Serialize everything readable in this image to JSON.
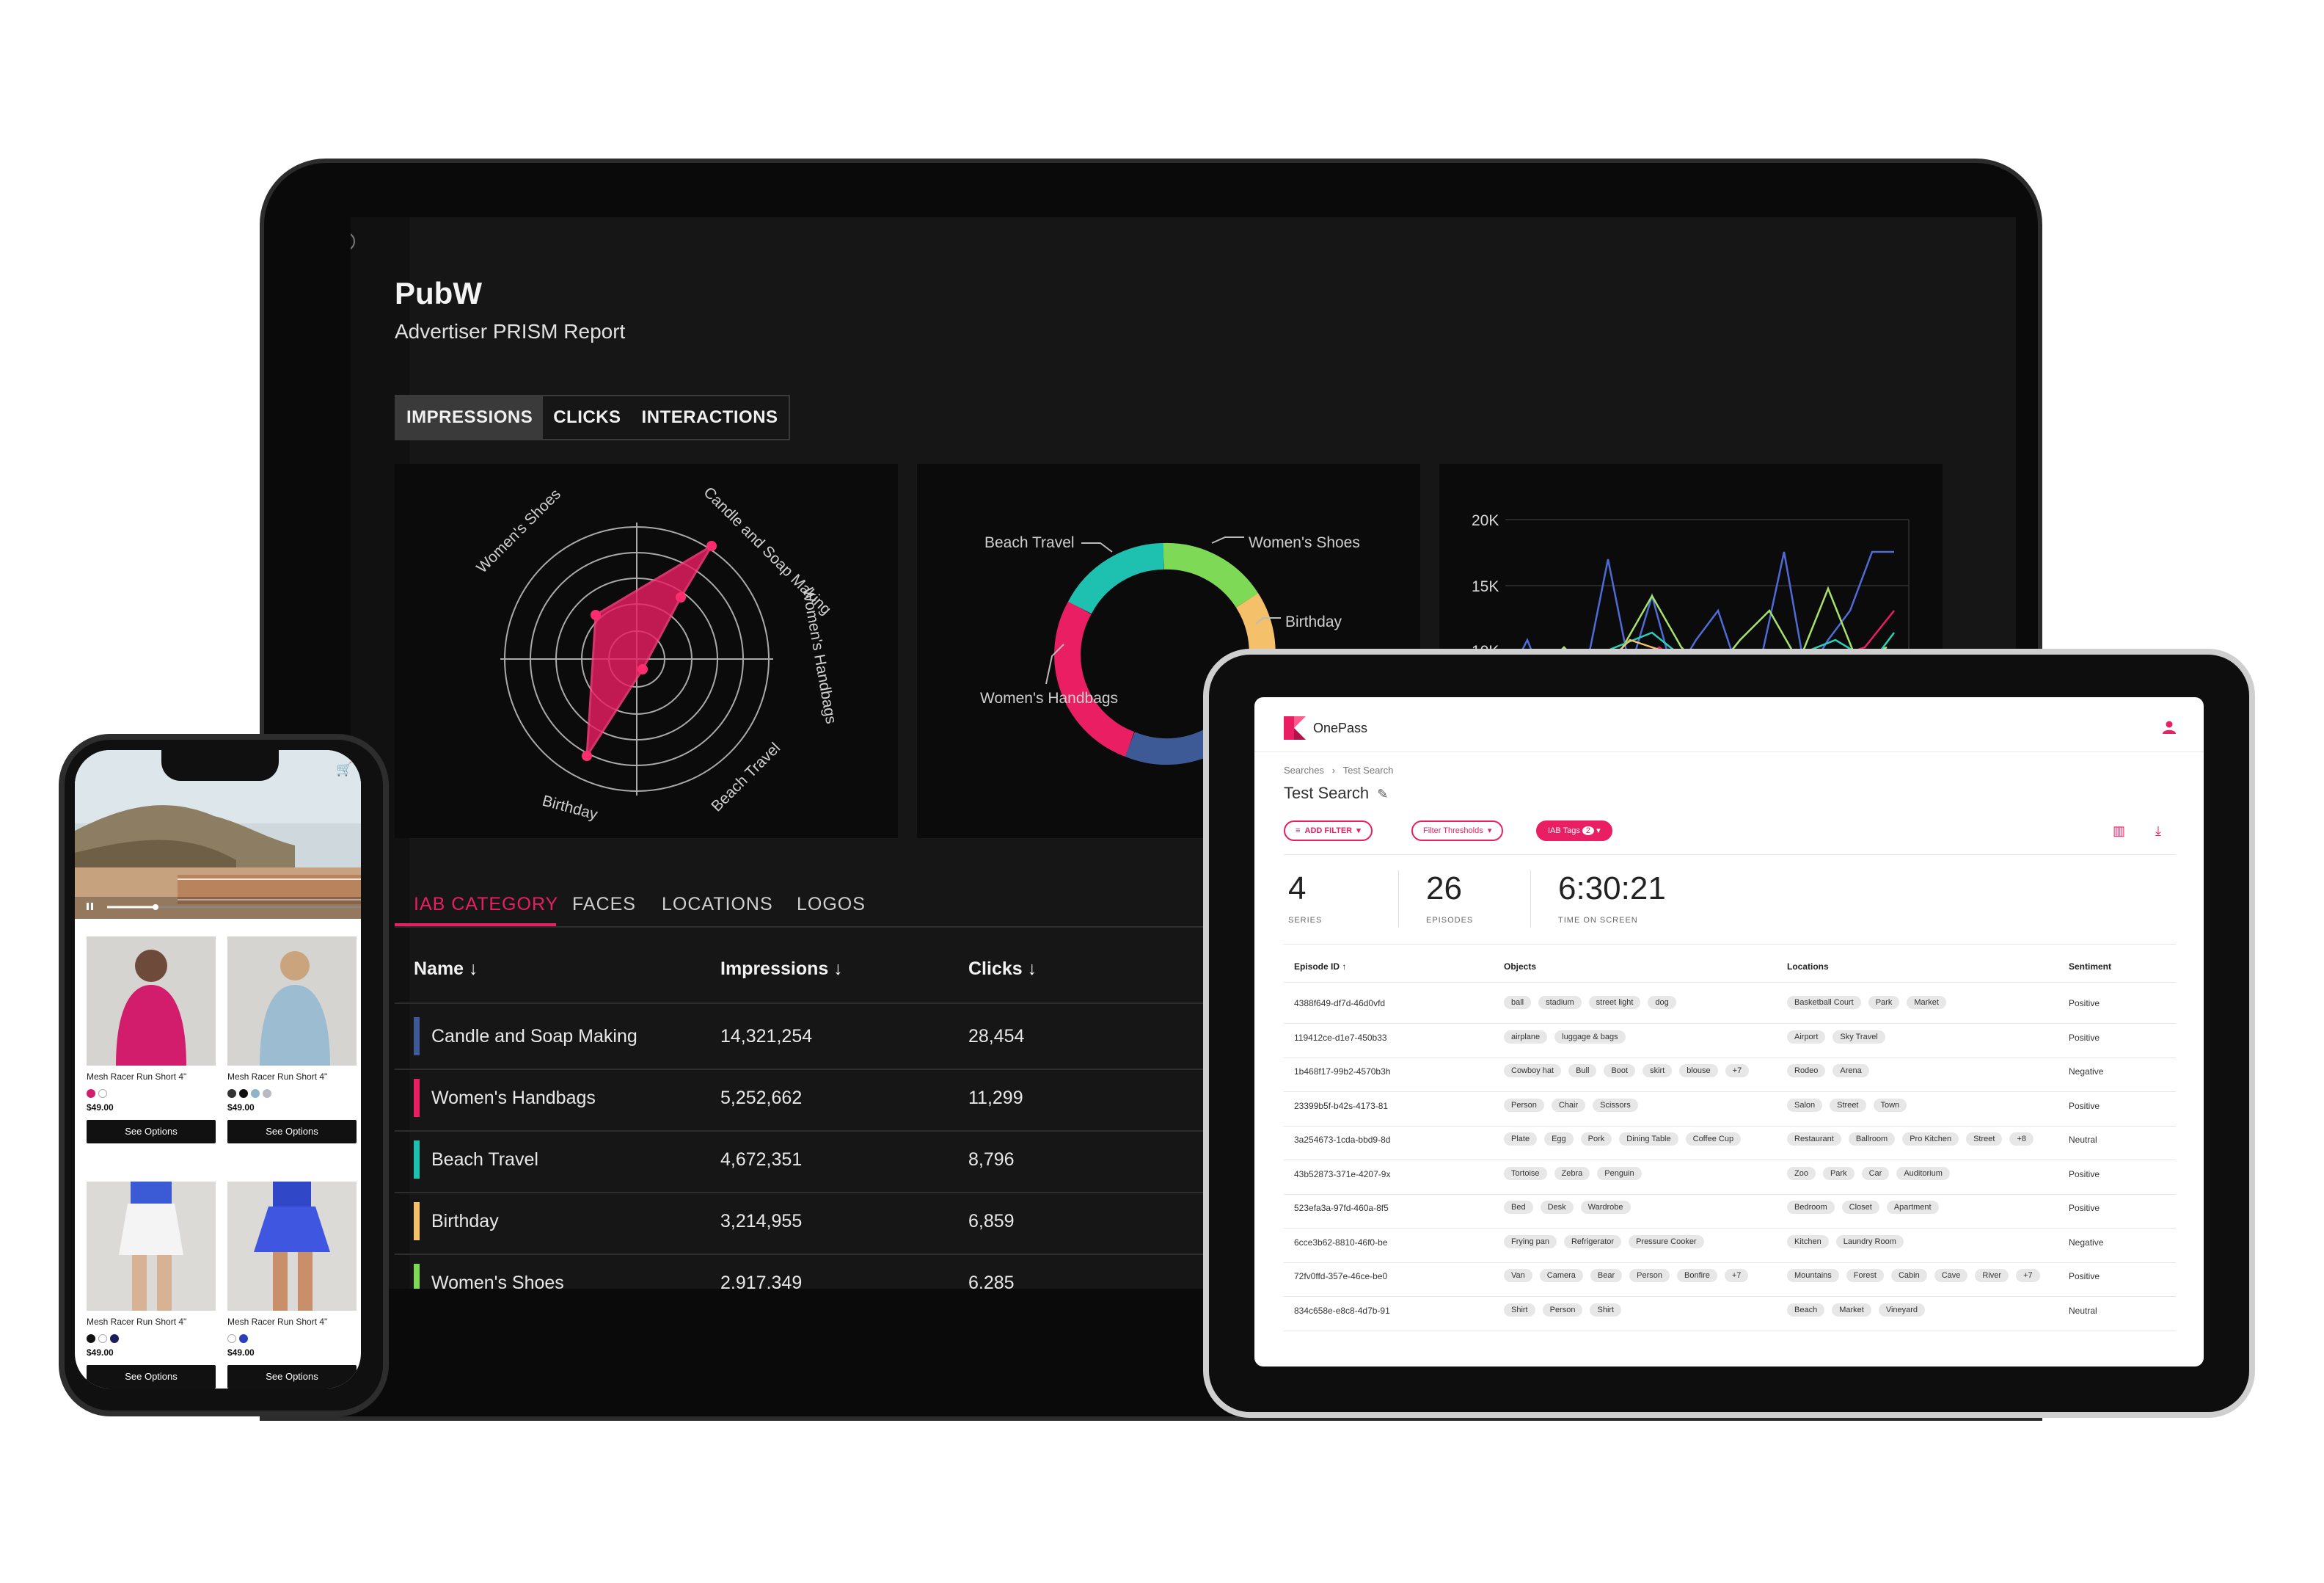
{
  "laptop": {
    "app_title": "PubW",
    "subtitle": "Advertiser PRISM Report",
    "tabs": [
      "IMPRESSIONS",
      "CLICKS",
      "INTERACTIONS"
    ],
    "radar_labels": [
      "Women's Shoes",
      "Candle and Soap Making",
      "Women's Handbags",
      "Beach Travel",
      "Birthday"
    ],
    "donut_labels": [
      "Beach Travel",
      "Women's Shoes",
      "Birthday",
      "Women's Handbags"
    ],
    "line_axis": [
      "20K",
      "15K",
      "10K"
    ],
    "sub_tabs": [
      "IAB CATEGORY",
      "FACES",
      "LOCATIONS",
      "LOGOS"
    ],
    "columns": [
      "Name",
      "Impressions",
      "Clicks"
    ],
    "rows": [
      {
        "name": "Candle and Soap Making",
        "impressions": "14,321,254",
        "clicks": "28,454",
        "color": "#3d5a96"
      },
      {
        "name": "Women's Handbags",
        "impressions": "5,252,662",
        "clicks": "11,299",
        "color": "#e91e63"
      },
      {
        "name": "Beach Travel",
        "impressions": "4,672,351",
        "clicks": "8,796",
        "color": "#1ec1b0"
      },
      {
        "name": "Birthday",
        "impressions": "3,214,955",
        "clicks": "6,859",
        "color": "#f5c06a"
      },
      {
        "name": "Women's Shoes",
        "impressions": "2,917,349",
        "clicks": "6,285",
        "color": "#7ed957"
      }
    ],
    "icons": [
      "logo-k-icon",
      "collapse-chevron-icon",
      "megaphone-icon",
      "video-icon",
      "grid-icon",
      "bar-chart-icon",
      "cast-icon",
      "face-scan-icon"
    ]
  },
  "phone": {
    "products": [
      {
        "name": "Mesh Racer Run Short 4\"",
        "price": "$49.00",
        "button": "See Options"
      },
      {
        "name": "Mesh Racer Run Short 4\"",
        "price": "$49.00",
        "button": "See Options"
      },
      {
        "name": "Mesh Racer Run Short 4\"",
        "price": "$49.00",
        "button": "See Options"
      },
      {
        "name": "Mesh Racer Run Short 4\"",
        "price": "$49.00",
        "button": "See Options"
      }
    ]
  },
  "tablet": {
    "app_name": "OnePass",
    "breadcrumb": [
      "Searches",
      "Test Search"
    ],
    "title": "Test Search",
    "filters": [
      "ADD FILTER",
      "Filter Thresholds",
      "IAB Tags"
    ],
    "iab_count": "2",
    "stats": [
      {
        "value": "4",
        "label": "SERIES"
      },
      {
        "value": "26",
        "label": "EPISODES"
      },
      {
        "value": "6:30:21",
        "label": "TIME ON SCREEN"
      }
    ],
    "columns": [
      "Episode ID",
      "Objects",
      "Locations",
      "Sentiment"
    ],
    "rows": [
      {
        "id": "4388f649-df7d-46d0vfd",
        "objects": [
          "ball",
          "stadium",
          "street light",
          "dog"
        ],
        "locations": [
          "Basketball Court",
          "Park",
          "Market"
        ],
        "sentiment": "Positive"
      },
      {
        "id": "119412ce-d1e7-450b33",
        "objects": [
          "airplane",
          "luggage & bags"
        ],
        "locations": [
          "Airport",
          "Sky Travel"
        ],
        "sentiment": "Positive"
      },
      {
        "id": "1b468f17-99b2-4570b3h",
        "objects": [
          "Cowboy hat",
          "Bull",
          "Boot",
          "skirt",
          "blouse",
          "+7"
        ],
        "locations": [
          "Rodeo",
          "Arena"
        ],
        "sentiment": "Negative"
      },
      {
        "id": "23399b5f-b42s-4173-81",
        "objects": [
          "Person",
          "Chair",
          "Scissors"
        ],
        "locations": [
          "Salon",
          "Street",
          "Town"
        ],
        "sentiment": "Positive"
      },
      {
        "id": "3a254673-1cda-bbd9-8d",
        "objects": [
          "Plate",
          "Egg",
          "Pork",
          "Dining Table",
          "Coffee Cup"
        ],
        "locations": [
          "Restaurant",
          "Ballroom",
          "Pro Kitchen",
          "Street",
          "+8"
        ],
        "sentiment": "Neutral"
      },
      {
        "id": "43b52873-371e-4207-9x",
        "objects": [
          "Tortoise",
          "Zebra",
          "Penguin"
        ],
        "locations": [
          "Zoo",
          "Park",
          "Car",
          "Auditorium"
        ],
        "sentiment": "Positive"
      },
      {
        "id": "523efa3a-97fd-460a-8f5",
        "objects": [
          "Bed",
          "Desk",
          "Wardrobe"
        ],
        "locations": [
          "Bedroom",
          "Closet",
          "Apartment"
        ],
        "sentiment": "Positive"
      },
      {
        "id": "6cce3b62-8810-46f0-be",
        "objects": [
          "Frying pan",
          "Refrigerator",
          "Pressure Cooker"
        ],
        "locations": [
          "Kitchen",
          "Laundry Room"
        ],
        "sentiment": "Negative"
      },
      {
        "id": "72fv0ffd-357e-46ce-be0",
        "objects": [
          "Van",
          "Camera",
          "Bear",
          "Person",
          "Bonfire",
          "+7"
        ],
        "locations": [
          "Mountains",
          "Forest",
          "Cabin",
          "Cave",
          "River",
          "+7"
        ],
        "sentiment": "Positive"
      },
      {
        "id": "834c658e-e8c8-4d7b-91",
        "objects": [
          "Shirt",
          "Person",
          "Shirt"
        ],
        "locations": [
          "Beach",
          "Market",
          "Vineyard"
        ],
        "sentiment": "Neutral"
      }
    ]
  },
  "colors": {
    "accent": "#e91e63",
    "teal": "#1ec1b0",
    "navy": "#3d5a96",
    "yellow": "#f5c06a",
    "green": "#7ed957"
  }
}
